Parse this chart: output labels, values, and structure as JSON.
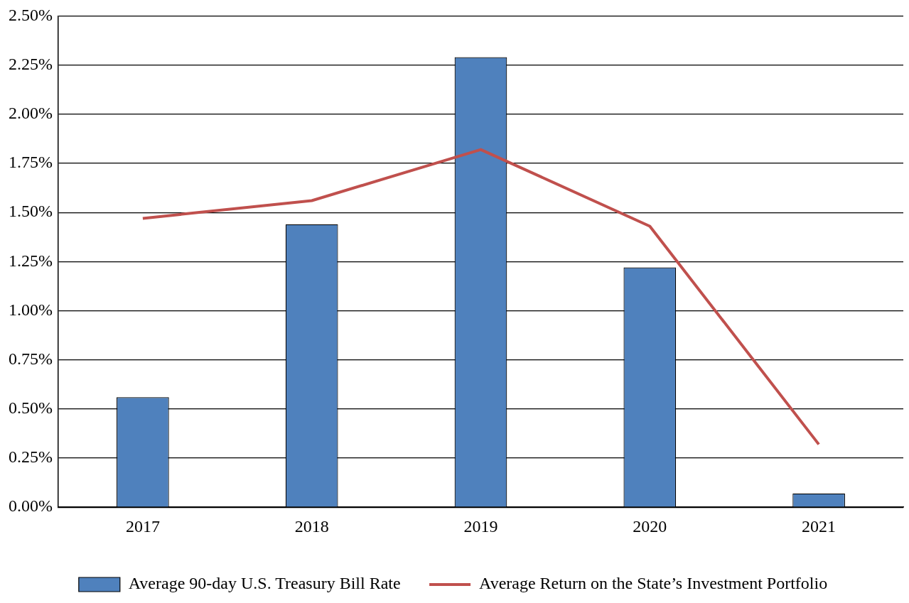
{
  "chart_data": {
    "type": "bar",
    "categories": [
      "2017",
      "2018",
      "2019",
      "2020",
      "2021"
    ],
    "series": [
      {
        "name": "Average 90-day U.S. Treasury Bill Rate",
        "color": "#4f81bd",
        "values": [
          0.56,
          1.44,
          2.29,
          1.22,
          0.07
        ]
      },
      {
        "name": "Average Return on the State’s Investment Portfolio",
        "type": "line",
        "color": "#c0504d",
        "values": [
          1.47,
          1.56,
          1.82,
          1.43,
          0.32
        ]
      }
    ],
    "ylim": [
      0,
      2.5
    ],
    "yticks": [
      {
        "value": 0,
        "label": "0.00%"
      },
      {
        "value": 0.25,
        "label": "0.25%"
      },
      {
        "value": 0.5,
        "label": "0.50%"
      },
      {
        "value": 0.75,
        "label": "0.75%"
      },
      {
        "value": 1,
        "label": "1.00%"
      },
      {
        "value": 1.25,
        "label": "1.25%"
      },
      {
        "value": 1.5,
        "label": "1.50%"
      },
      {
        "value": 1.75,
        "label": "1.75%"
      },
      {
        "value": 2,
        "label": "2.00%"
      },
      {
        "value": 2.25,
        "label": "2.25%"
      },
      {
        "value": 2.5,
        "label": "2.50%"
      }
    ],
    "grid": "y",
    "legend": "bottom",
    "marker": "none"
  }
}
